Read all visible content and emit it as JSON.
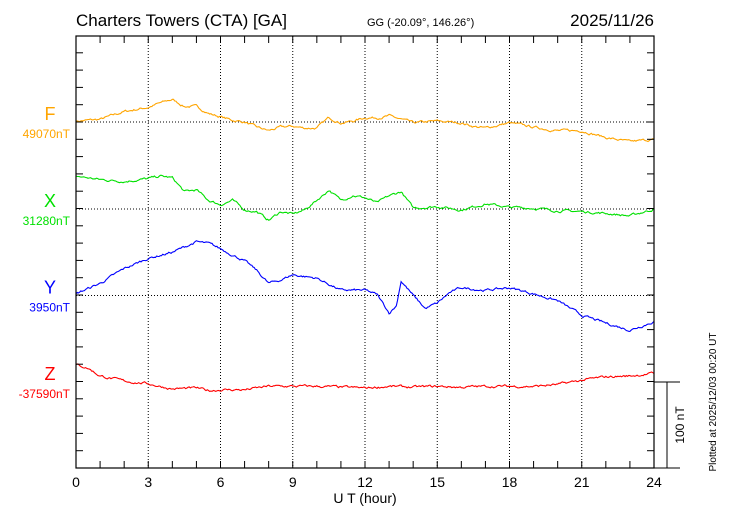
{
  "header": {
    "station": "Charters Towers (CTA)  [GA]",
    "coords": "GG (-20.09°, 146.26°)",
    "date": "2025/11/26"
  },
  "footer": {
    "plotted": "Plotted at 2025/12/03 00:20 UT"
  },
  "chart_data": {
    "type": "line",
    "title": "Charters Towers (CTA)  [GA]",
    "xlabel": "U T (hour)",
    "xlim": [
      0,
      24
    ],
    "xticks": [
      "0",
      "3",
      "6",
      "9",
      "12",
      "15",
      "18",
      "21",
      "24"
    ],
    "scale_label": "100 nT",
    "scale_nT": 100,
    "series": [
      {
        "name": "F",
        "baseline_label": "49070nT",
        "color": "#ffa500",
        "points": [
          [
            0,
            1
          ],
          [
            1,
            3
          ],
          [
            2,
            12
          ],
          [
            3,
            17
          ],
          [
            3.5,
            22
          ],
          [
            4,
            26
          ],
          [
            4.5,
            18
          ],
          [
            5,
            18
          ],
          [
            5.5,
            10
          ],
          [
            6,
            6
          ],
          [
            6.5,
            2
          ],
          [
            7,
            0
          ],
          [
            7.5,
            -6
          ],
          [
            8,
            -10
          ],
          [
            8.5,
            -6
          ],
          [
            9,
            -5
          ],
          [
            9.5,
            -7
          ],
          [
            10,
            -7
          ],
          [
            10.5,
            5
          ],
          [
            11,
            -1
          ],
          [
            11.5,
            1
          ],
          [
            12,
            5
          ],
          [
            12.5,
            5
          ],
          [
            13,
            7
          ],
          [
            13.5,
            3
          ],
          [
            14,
            -1
          ],
          [
            15,
            1
          ],
          [
            16,
            -1
          ],
          [
            16.5,
            -5
          ],
          [
            17,
            -7
          ],
          [
            18,
            -1
          ],
          [
            19,
            -6
          ],
          [
            20,
            -10
          ],
          [
            21,
            -10
          ],
          [
            22,
            -18
          ],
          [
            23,
            -23
          ],
          [
            24,
            -20
          ]
        ]
      },
      {
        "name": "X",
        "baseline_label": "31280nT",
        "color": "#00e000",
        "points": [
          [
            0,
            38
          ],
          [
            1,
            34
          ],
          [
            2,
            32
          ],
          [
            3,
            35
          ],
          [
            3.5,
            38
          ],
          [
            4,
            36
          ],
          [
            4.5,
            20
          ],
          [
            5,
            22
          ],
          [
            5.5,
            10
          ],
          [
            6,
            5
          ],
          [
            6.5,
            10
          ],
          [
            7,
            -1
          ],
          [
            7.5,
            -3
          ],
          [
            8,
            -13
          ],
          [
            8.5,
            -3
          ],
          [
            9,
            -6
          ],
          [
            9.5,
            -1
          ],
          [
            10,
            10
          ],
          [
            10.5,
            22
          ],
          [
            11,
            10
          ],
          [
            11.5,
            16
          ],
          [
            12,
            13
          ],
          [
            12.5,
            7
          ],
          [
            13,
            15
          ],
          [
            13.5,
            20
          ],
          [
            14,
            1
          ],
          [
            15,
            3
          ],
          [
            16,
            -1
          ],
          [
            17,
            6
          ],
          [
            18,
            2
          ],
          [
            19,
            1
          ],
          [
            20,
            -2
          ],
          [
            21,
            -3
          ],
          [
            22,
            -5
          ],
          [
            23,
            -8
          ],
          [
            24,
            0
          ]
        ]
      },
      {
        "name": "Y",
        "baseline_label": "3950nT",
        "color": "#0000ff",
        "points": [
          [
            0,
            2
          ],
          [
            1,
            14
          ],
          [
            2,
            31
          ],
          [
            3,
            43
          ],
          [
            4,
            50
          ],
          [
            5,
            62
          ],
          [
            5.5,
            60
          ],
          [
            6,
            54
          ],
          [
            7,
            40
          ],
          [
            7.5,
            29
          ],
          [
            8,
            14
          ],
          [
            8.5,
            18
          ],
          [
            9,
            24
          ],
          [
            10,
            20
          ],
          [
            10.5,
            13
          ],
          [
            11,
            6
          ],
          [
            12,
            6
          ],
          [
            12.5,
            1
          ],
          [
            13,
            -20
          ],
          [
            13.3,
            -12
          ],
          [
            13.5,
            17
          ],
          [
            14,
            0
          ],
          [
            14.5,
            -15
          ],
          [
            15,
            -9
          ],
          [
            15.5,
            3
          ],
          [
            16,
            9
          ],
          [
            17,
            6
          ],
          [
            18,
            9
          ],
          [
            19,
            2
          ],
          [
            20,
            -6
          ],
          [
            21,
            -23
          ],
          [
            22,
            -32
          ],
          [
            23,
            -40
          ],
          [
            24,
            -30
          ]
        ]
      },
      {
        "name": "Z",
        "baseline_label": "-37590nT",
        "color": "#ff0000",
        "points": [
          [
            0,
            20
          ],
          [
            0.5,
            16
          ],
          [
            1,
            7
          ],
          [
            2,
            1
          ],
          [
            3,
            -2
          ],
          [
            4,
            -8
          ],
          [
            5,
            -7
          ],
          [
            5.5,
            -10
          ],
          [
            6,
            -9
          ],
          [
            7,
            -9
          ],
          [
            8,
            -5
          ],
          [
            9,
            -5
          ],
          [
            10,
            -5
          ],
          [
            11,
            -6
          ],
          [
            12,
            -7
          ],
          [
            13,
            -5
          ],
          [
            14,
            -6
          ],
          [
            15,
            -5
          ],
          [
            16,
            -6
          ],
          [
            17,
            -5
          ],
          [
            18,
            -5
          ],
          [
            19,
            -5
          ],
          [
            20,
            -3
          ],
          [
            21,
            2
          ],
          [
            22,
            6
          ],
          [
            23,
            7
          ],
          [
            24,
            10
          ]
        ]
      }
    ]
  }
}
